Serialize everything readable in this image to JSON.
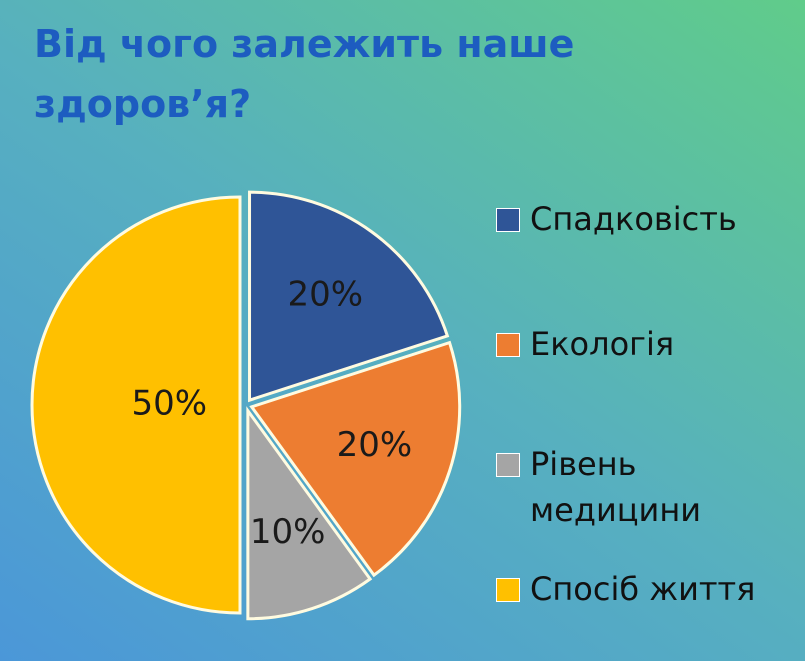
{
  "chart_data": {
    "type": "pie",
    "title": "Від чого залежить наше здоров’я?",
    "categories": [
      "Спадковість",
      "Екологія",
      "Рівень медицини",
      "Спосіб життя"
    ],
    "values": [
      20,
      20,
      10,
      50
    ],
    "value_labels": [
      "20%",
      "20%",
      "10%",
      "50%"
    ],
    "colors": [
      "#2f5597",
      "#ed7d31",
      "#a5a5a5",
      "#ffc000"
    ],
    "legend": "right"
  }
}
